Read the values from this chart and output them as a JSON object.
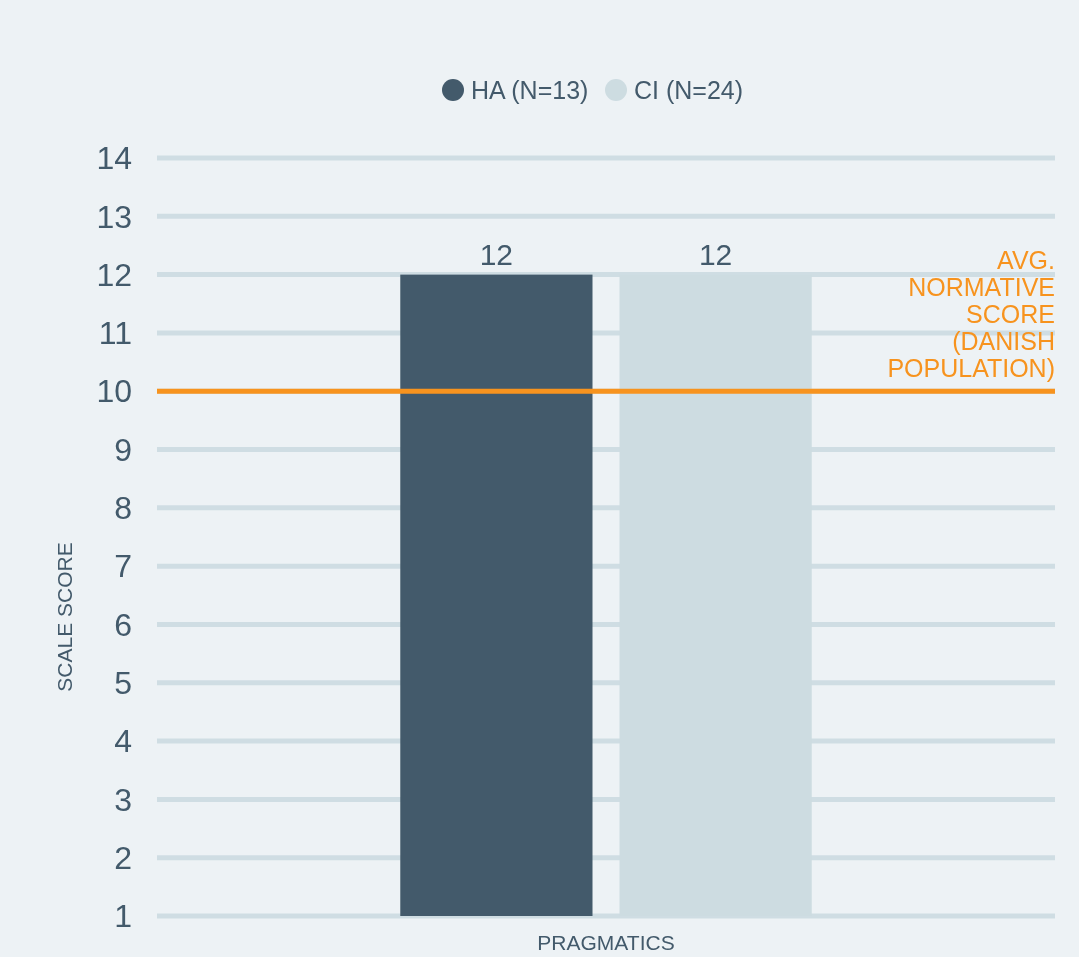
{
  "chart_data": {
    "type": "bar",
    "ylabel": "SCALE SCORE",
    "categories": [
      "PRAGMATICS"
    ],
    "series": [
      {
        "name": "HA (N=13)",
        "color": "#435a6b",
        "values": [
          12
        ]
      },
      {
        "name": "CI (N=24)",
        "color": "#cddce1",
        "values": [
          12
        ]
      }
    ],
    "ylim": [
      1,
      14
    ],
    "yticks": [
      1,
      2,
      3,
      4,
      5,
      6,
      7,
      8,
      9,
      10,
      11,
      12,
      13,
      14
    ],
    "grid": "y",
    "legend": "top",
    "data_labels": true,
    "ref_lines": [
      {
        "axis": "y",
        "value": 10,
        "label": "AVG. NORMATIVE SCORE (DANISH POPULATION)",
        "color": "#f7931e"
      }
    ]
  }
}
